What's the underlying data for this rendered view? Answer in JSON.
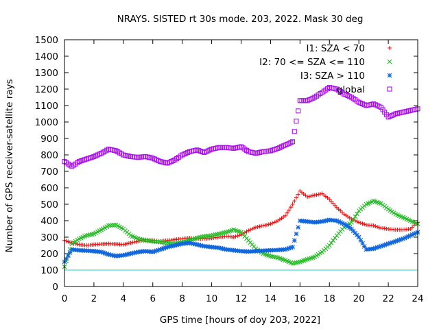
{
  "chart_data": {
    "type": "scatter",
    "title": "NRAYS. SISTED rt 30s mode. 203, 2022. Mask 30 deg",
    "xlabel": "GPS time [hours of doy 203, 2022]",
    "ylabel": "Number of GPS receiver-satellite rays",
    "xlim": [
      0,
      24
    ],
    "ylim": [
      0,
      1500
    ],
    "xticks": [
      0,
      2,
      4,
      6,
      8,
      10,
      12,
      14,
      16,
      18,
      20,
      22,
      24
    ],
    "yticks": [
      0,
      100,
      200,
      300,
      400,
      500,
      600,
      700,
      800,
      900,
      1000,
      1100,
      1200,
      1300,
      1400,
      1500
    ],
    "legend_position": "top-right",
    "reference_line": {
      "y": 100,
      "color": "#22cccc"
    },
    "series": [
      {
        "name": "I1: SZA < 70",
        "color": "#ee1111",
        "marker": "+",
        "x": [
          0,
          0.5,
          1,
          1.5,
          2,
          2.5,
          3,
          3.5,
          4,
          4.5,
          5,
          5.5,
          6,
          6.5,
          7,
          7.5,
          8,
          8.5,
          9,
          9.5,
          10,
          10.5,
          11,
          11.5,
          12,
          12.5,
          13,
          13.5,
          14,
          14.5,
          15,
          15.5,
          16,
          16.5,
          17,
          17.5,
          18,
          18.5,
          19,
          19.5,
          20,
          20.5,
          21,
          21.5,
          22,
          22.5,
          23,
          23.5,
          24
        ],
        "values": [
          280,
          265,
          255,
          250,
          255,
          258,
          260,
          258,
          255,
          265,
          275,
          285,
          280,
          275,
          280,
          285,
          290,
          295,
          290,
          290,
          295,
          300,
          305,
          300,
          315,
          340,
          360,
          370,
          380,
          400,
          430,
          500,
          580,
          545,
          555,
          565,
          530,
          480,
          440,
          410,
          390,
          375,
          370,
          355,
          350,
          345,
          345,
          350,
          390
        ]
      },
      {
        "name": "I2: 70 <= SZA <= 110",
        "color": "#22bb22",
        "marker": "x",
        "x": [
          0,
          0.5,
          1,
          1.5,
          2,
          2.5,
          3,
          3.5,
          4,
          4.5,
          5,
          5.5,
          6,
          6.5,
          7,
          7.5,
          8,
          8.5,
          9,
          9.5,
          10,
          10.5,
          11,
          11.5,
          12,
          12.5,
          13,
          13.5,
          14,
          14.5,
          15,
          15.5,
          16,
          16.5,
          17,
          17.5,
          18,
          18.5,
          19,
          19.5,
          20,
          20.5,
          21,
          21.5,
          22,
          22.5,
          23,
          23.5,
          24
        ],
        "values": [
          120,
          260,
          290,
          310,
          320,
          345,
          370,
          375,
          350,
          310,
          290,
          280,
          275,
          270,
          265,
          260,
          270,
          280,
          295,
          305,
          310,
          320,
          330,
          345,
          330,
          280,
          230,
          200,
          185,
          175,
          160,
          140,
          150,
          165,
          180,
          210,
          250,
          310,
          360,
          390,
          460,
          500,
          520,
          505,
          470,
          440,
          420,
          400,
          380
        ]
      },
      {
        "name": "I3: SZA > 110",
        "color": "#1166dd",
        "marker": "*",
        "x": [
          0,
          0.5,
          1,
          1.5,
          2,
          2.5,
          3,
          3.5,
          4,
          4.5,
          5,
          5.5,
          6,
          6.5,
          7,
          7.5,
          8,
          8.5,
          9,
          9.5,
          10,
          10.5,
          11,
          11.5,
          12,
          12.5,
          13,
          13.5,
          14,
          14.5,
          15,
          15.5,
          16,
          16.5,
          17,
          17.5,
          18,
          18.5,
          19,
          19.5,
          20,
          20.5,
          21,
          21.5,
          22,
          22.5,
          23,
          23.5,
          24
        ],
        "values": [
          150,
          225,
          220,
          218,
          215,
          210,
          195,
          185,
          190,
          200,
          210,
          215,
          210,
          225,
          240,
          250,
          260,
          265,
          255,
          245,
          240,
          235,
          225,
          220,
          215,
          212,
          215,
          218,
          220,
          222,
          225,
          240,
          400,
          395,
          390,
          395,
          405,
          400,
          380,
          350,
          300,
          225,
          230,
          245,
          260,
          275,
          290,
          310,
          330
        ]
      },
      {
        "name": "global",
        "color": "#aa11ee",
        "marker": "square",
        "x": [
          0,
          0.5,
          1,
          1.5,
          2,
          2.5,
          3,
          3.5,
          4,
          4.5,
          5,
          5.5,
          6,
          6.5,
          7,
          7.5,
          8,
          8.5,
          9,
          9.5,
          10,
          10.5,
          11,
          11.5,
          12,
          12.5,
          13,
          13.5,
          14,
          14.5,
          15,
          15.5,
          16,
          16.5,
          17,
          17.5,
          18,
          18.5,
          19,
          19.5,
          20,
          20.5,
          21,
          21.5,
          22,
          22.5,
          23,
          23.5,
          24
        ],
        "values": [
          760,
          730,
          760,
          775,
          790,
          810,
          835,
          825,
          800,
          790,
          785,
          790,
          780,
          760,
          750,
          770,
          800,
          820,
          830,
          815,
          835,
          845,
          845,
          840,
          850,
          820,
          810,
          820,
          825,
          840,
          860,
          880,
          1130,
          1130,
          1150,
          1180,
          1210,
          1200,
          1170,
          1150,
          1120,
          1100,
          1110,
          1090,
          1030,
          1050,
          1060,
          1070,
          1080
        ]
      }
    ]
  }
}
